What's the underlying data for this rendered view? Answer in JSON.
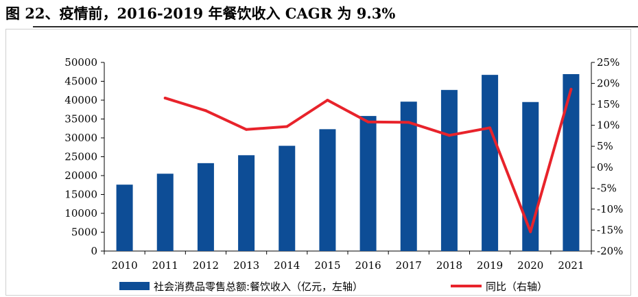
{
  "title": "图 22、疫情前，2016-2019 年餐饮收入 CAGR 为 9.3%",
  "chart_data": {
    "type": "bar",
    "categories": [
      "2010",
      "2011",
      "2012",
      "2013",
      "2014",
      "2015",
      "2016",
      "2017",
      "2018",
      "2019",
      "2020",
      "2021"
    ],
    "series": [
      {
        "name": "社会消费品零售总额:餐饮收入（亿元，左轴）",
        "type": "bar",
        "axis": "left",
        "color": "#0d4d96",
        "values": [
          17600,
          20500,
          23300,
          25400,
          27900,
          32300,
          35800,
          39600,
          42700,
          46700,
          39500,
          46900
        ]
      },
      {
        "name": "同比（右轴）",
        "type": "line",
        "axis": "right",
        "color": "#e8232b",
        "values": [
          null,
          16.5,
          13.5,
          9.0,
          9.7,
          16.0,
          10.8,
          10.7,
          7.6,
          9.4,
          -15.4,
          18.6
        ]
      }
    ],
    "y_left": {
      "min": 0,
      "max": 50000,
      "ticks": [
        "0",
        "5000",
        "10000",
        "15000",
        "20000",
        "25000",
        "30000",
        "35000",
        "40000",
        "45000",
        "50000"
      ]
    },
    "y_right": {
      "min": -20,
      "max": 25,
      "ticks": [
        "-20%",
        "-15%",
        "-10%",
        "-5%",
        "0%",
        "5%",
        "10%",
        "15%",
        "20%",
        "25%"
      ]
    },
    "legend_position": "bottom",
    "grid": false
  }
}
